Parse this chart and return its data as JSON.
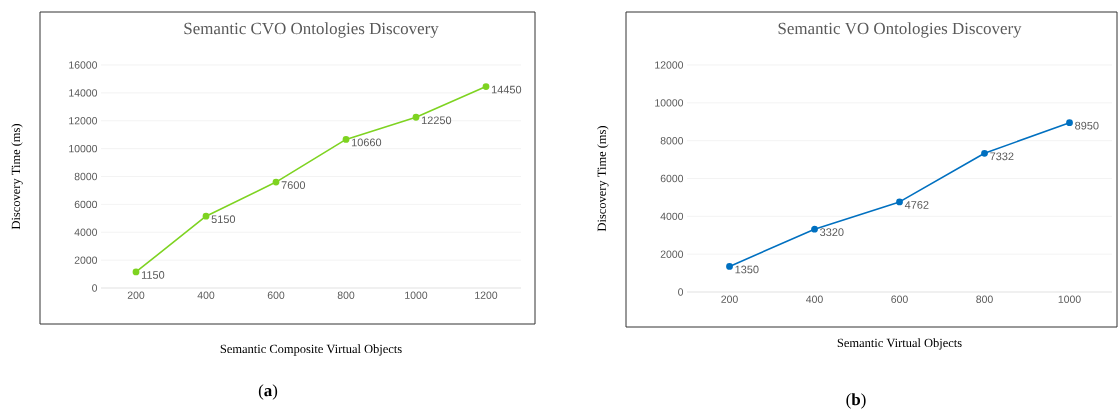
{
  "chart_data": [
    {
      "type": "line",
      "title": "Semantic CVO Ontologies Discovery",
      "xlabel": "Semantic Composite Virtual Objects",
      "ylabel": "Discovery Time  (ms)",
      "categories": [
        "200",
        "400",
        "600",
        "800",
        "1000",
        "1200"
      ],
      "values": [
        1150,
        5150,
        7600,
        10660,
        12250,
        14450
      ],
      "color": "#7ed321",
      "ylim": [
        0,
        16000
      ],
      "yticks": [
        0,
        2000,
        4000,
        6000,
        8000,
        10000,
        12000,
        14000,
        16000
      ],
      "grid": "y",
      "marker": "circle",
      "data_labels": true,
      "annotations": [
        "(**a**)"
      ]
    },
    {
      "type": "line",
      "title": "Semantic VO Ontologies Discovery",
      "xlabel": "Semantic Virtual Objects",
      "ylabel": "Discovery Time  (ms)",
      "categories": [
        "200",
        "400",
        "600",
        "800",
        "1000"
      ],
      "values": [
        1350,
        3320,
        4762,
        7332,
        8950
      ],
      "color": "#0070c0",
      "ylim": [
        0,
        12000
      ],
      "yticks": [
        0,
        2000,
        4000,
        6000,
        8000,
        10000,
        12000
      ],
      "grid": "y",
      "marker": "circle",
      "data_labels": true,
      "annotations": [
        "(**b**)"
      ]
    }
  ]
}
